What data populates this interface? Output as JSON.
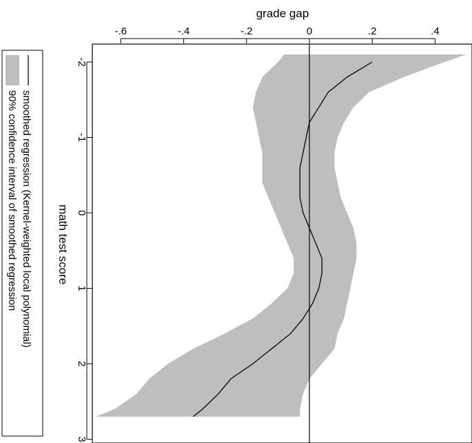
{
  "chart_data": {
    "type": "line",
    "orientation": "rotated-90",
    "x_axis_label": "math test score",
    "y_axis_label": "grade gap",
    "xlim": [
      -2.1,
      3.0
    ],
    "ylim": [
      -0.7,
      0.5
    ],
    "x_tick_labels": [
      "-2",
      "-1",
      "0",
      "1",
      "2",
      "3"
    ],
    "y_tick_labels": [
      "-.6",
      "-.4",
      "-.2",
      "0",
      ".2",
      ".4"
    ],
    "reference_line": 0,
    "legend": [
      "smoothed regression (Kernel-weighted local polynomial)",
      "90% confidence interval of smoothed regression"
    ],
    "series": [
      {
        "name": "smoothed regression (Kernel-weighted local polynomial)",
        "x": [
          -2.0,
          -1.8,
          -1.6,
          -1.4,
          -1.2,
          -1.0,
          -0.8,
          -0.6,
          -0.4,
          -0.2,
          0.0,
          0.2,
          0.4,
          0.6,
          0.8,
          1.0,
          1.2,
          1.4,
          1.6,
          1.8,
          2.0,
          2.2,
          2.4,
          2.6,
          2.7
        ],
        "y": [
          0.2,
          0.12,
          0.06,
          0.03,
          0.0,
          -0.01,
          -0.02,
          -0.03,
          -0.03,
          -0.03,
          -0.02,
          0.0,
          0.02,
          0.04,
          0.04,
          0.03,
          0.01,
          -0.02,
          -0.06,
          -0.12,
          -0.18,
          -0.25,
          -0.29,
          -0.34,
          -0.37
        ]
      }
    ],
    "confidence_band": {
      "name": "90% confidence interval of smoothed regression",
      "x": [
        -2.1,
        -2.0,
        -1.8,
        -1.6,
        -1.4,
        -1.2,
        -1.0,
        -0.8,
        -0.6,
        -0.4,
        -0.2,
        0.0,
        0.2,
        0.4,
        0.6,
        0.8,
        1.0,
        1.2,
        1.4,
        1.6,
        1.8,
        2.0,
        2.2,
        2.4,
        2.6,
        2.7
      ],
      "lower": [
        -0.08,
        -0.1,
        -0.15,
        -0.17,
        -0.18,
        -0.17,
        -0.16,
        -0.15,
        -0.15,
        -0.15,
        -0.13,
        -0.11,
        -0.09,
        -0.07,
        -0.05,
        -0.05,
        -0.07,
        -0.12,
        -0.18,
        -0.27,
        -0.37,
        -0.45,
        -0.51,
        -0.55,
        -0.62,
        -0.68
      ],
      "upper": [
        0.5,
        0.43,
        0.3,
        0.19,
        0.14,
        0.11,
        0.09,
        0.08,
        0.08,
        0.09,
        0.1,
        0.12,
        0.14,
        0.15,
        0.15,
        0.14,
        0.13,
        0.12,
        0.11,
        0.09,
        0.08,
        0.04,
        0.0,
        -0.02,
        -0.03,
        -0.03
      ]
    },
    "colors": {
      "line": "#000000",
      "band": "#bebebe",
      "axis": "#000000"
    },
    "grid": false
  }
}
